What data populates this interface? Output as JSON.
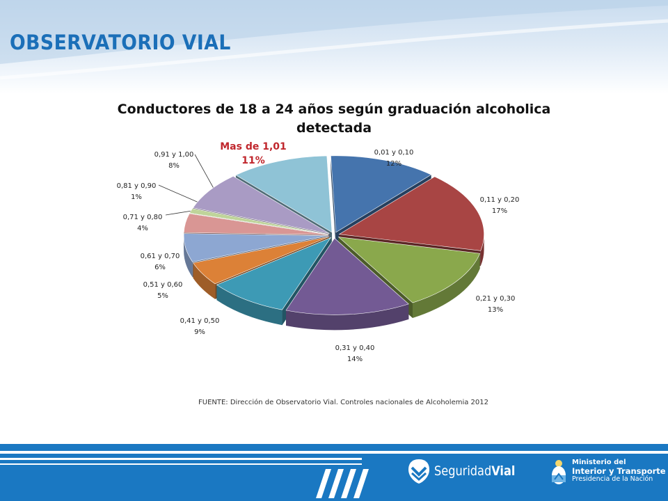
{
  "header": {
    "title": "OBSERVATORIO VIAL"
  },
  "chart_data": {
    "type": "pie",
    "title": "Conductores de 18 a 24 años según graduación alcoholica detectada",
    "legend": "none",
    "highlight_color": "#c0272d",
    "slices": [
      {
        "label": "0,01 y 0,10",
        "pct": "12%",
        "value": 12,
        "color": "#4574ad"
      },
      {
        "label": "0,11 y 0,20",
        "pct": "17%",
        "value": 17,
        "color": "#a84544"
      },
      {
        "label": "0,21 y 0,30",
        "pct": "13%",
        "value": 13,
        "color": "#8aa84c"
      },
      {
        "label": "0,31 y 0,40",
        "pct": "14%",
        "value": 14,
        "color": "#735a94"
      },
      {
        "label": "0,41 y 0,50",
        "pct": "9%",
        "value": 9,
        "color": "#3d9ab5"
      },
      {
        "label": "0,51 y 0,60",
        "pct": "5%",
        "value": 5,
        "color": "#dc8137"
      },
      {
        "label": "0,61 y 0,70",
        "pct": "6%",
        "value": 6,
        "color": "#8da7d2"
      },
      {
        "label": "0,71 y 0,80",
        "pct": "4%",
        "value": 4,
        "color": "#d99694"
      },
      {
        "label": "0,81 y 0,90",
        "pct": "1%",
        "value": 1,
        "color": "#bfd49a"
      },
      {
        "label": "0,91 y 1,00",
        "pct": "8%",
        "value": 8,
        "color": "#a99bc4"
      },
      {
        "label": "Mas de 1,01",
        "pct": "11%",
        "value": 11,
        "color": "#8fc3d6",
        "highlight": true
      }
    ]
  },
  "source": "FUENTE:  Dirección de Observatorio Vial.  Controles nacionales de Alcoholemia 2012",
  "footer": {
    "logo1": {
      "part1": "Seguridad",
      "part2": "Vial"
    },
    "logo2": {
      "line1": "Ministerio del",
      "line2": "Interior y Transporte",
      "line3": "Presidencia de la Nación"
    }
  }
}
